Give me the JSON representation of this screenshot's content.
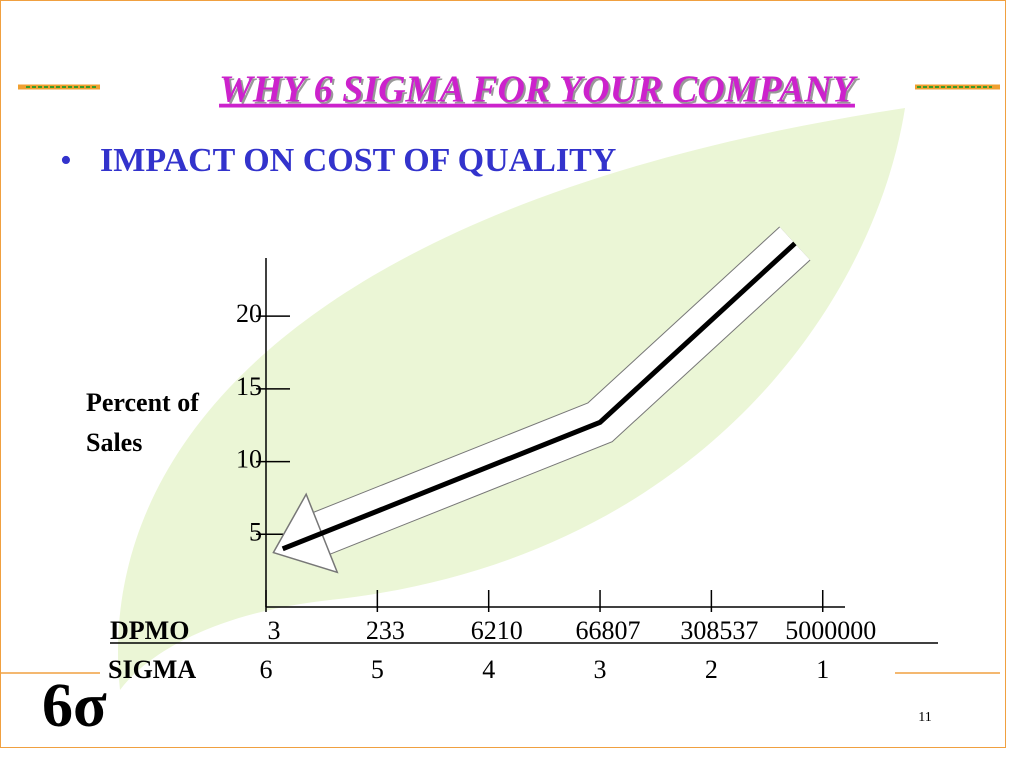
{
  "slide": {
    "title": "WHY 6 SIGMA FOR  YOUR COMPANY",
    "bullet": "IMPACT ON COST OF QUALITY",
    "logo": "6σ",
    "page_number": "11"
  },
  "chart_data": {
    "type": "line",
    "ylabel": "Percent of Sales",
    "ylim": [
      0,
      24
    ],
    "yticks": [
      5,
      10,
      15,
      20
    ],
    "xlim": [
      6,
      0.8
    ],
    "xticks": [
      6,
      5,
      4,
      3,
      2,
      1
    ],
    "xlabel": "SIGMA",
    "x2label": "DPMO",
    "x2ticks": [
      3,
      233,
      6210,
      66807,
      308537,
      5000000
    ],
    "series": [
      {
        "x": [
          5.85,
          3,
          1.25
        ],
        "values": [
          4,
          12.7,
          25
        ],
        "color": "#000000"
      }
    ]
  }
}
